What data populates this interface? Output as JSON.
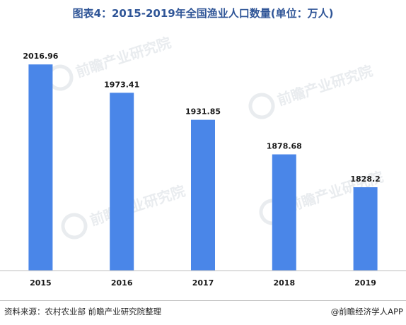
{
  "title": "图表4：2015-2019年全国渔业人口数量(单位：万人)",
  "footer": {
    "source": "资料来源：农村农业部 前瞻产业研究院整理",
    "brand": "@前瞻经济学人APP"
  },
  "watermark": {
    "text": "前瞻产业研究院"
  },
  "colors": {
    "bar": "#4a86e8",
    "title": "#2f5597"
  },
  "chart_data": {
    "type": "bar",
    "title": "图表4：2015-2019年全国渔业人口数量(单位：万人)",
    "xlabel": "",
    "ylabel": "",
    "categories": [
      "2015",
      "2016",
      "2017",
      "2018",
      "2019"
    ],
    "values": [
      2016.96,
      1973.41,
      1931.85,
      1878.68,
      1828.2
    ],
    "value_labels": [
      "2016.96",
      "1973.41",
      "1931.85",
      "1878.68",
      "1828.2"
    ],
    "ylim": [
      1700,
      2040
    ],
    "grid": false,
    "legend": "none"
  }
}
